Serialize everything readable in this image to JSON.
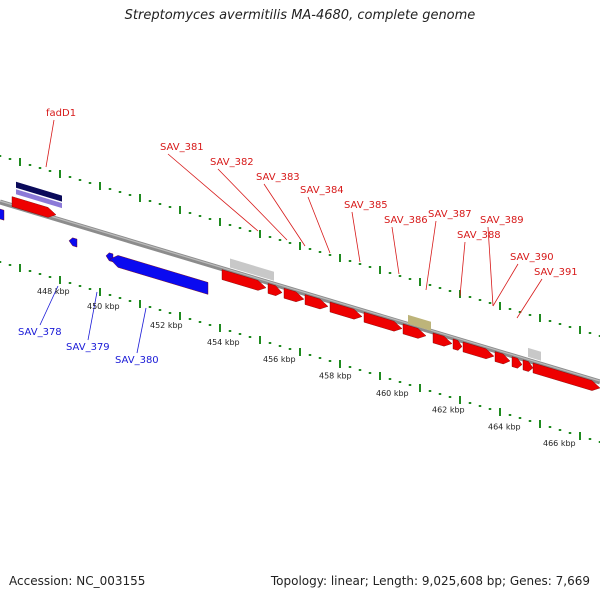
{
  "title": "Streptomyces avermitilis MA-4680, complete genome",
  "footer": {
    "accession": "Accession: NC_003155",
    "summary": "Topology: linear; Length: 9,025,608 bp; Genes: 7,669"
  },
  "colors": {
    "forward_gene": "#ee0000",
    "reverse_gene": "#0a0af0",
    "backbone": "#8c8c8c",
    "tick_green": "#1f8a1f",
    "label_red": "#d71a1a",
    "label_blue": "#1a1ad7",
    "pseudo_gray": "#c8c8c8",
    "misc_olive": "#bdb47a",
    "fadD1_dark": "#0a0a5a",
    "fadD1_light": "#8c7ad8"
  },
  "axis_ticks": [
    {
      "kbp": 448,
      "label": "448 kbp"
    },
    {
      "kbp": 450,
      "label": "450 kbp"
    },
    {
      "kbp": 452,
      "label": "452 kbp"
    },
    {
      "kbp": 454,
      "label": "454 kbp"
    },
    {
      "kbp": 456,
      "label": "456 kbp"
    },
    {
      "kbp": 458,
      "label": "458 kbp"
    },
    {
      "kbp": 460,
      "label": "460 kbp"
    },
    {
      "kbp": 462,
      "label": "462 kbp"
    },
    {
      "kbp": 464,
      "label": "464 kbp"
    },
    {
      "kbp": 466,
      "label": "466 kbp"
    }
  ],
  "labels": {
    "forward": [
      "fadD1",
      "SAV_381",
      "SAV_382",
      "SAV_383",
      "SAV_384",
      "SAV_385",
      "SAV_386",
      "SAV_387",
      "SAV_388",
      "SAV_389",
      "SAV_390",
      "SAV_391"
    ],
    "reverse": [
      "SAV_378",
      "SAV_379",
      "SAV_380"
    ]
  }
}
